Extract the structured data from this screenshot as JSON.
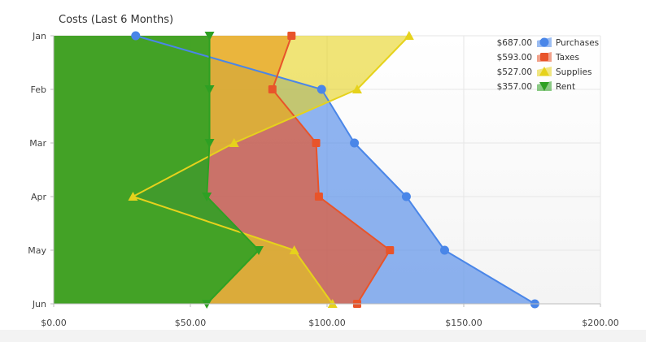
{
  "chart_data": {
    "type": "area",
    "orientation": "horizontal",
    "title": "Costs (Last 6 Months)",
    "xlabel": "",
    "ylabel": "",
    "categories": [
      "Jan",
      "Feb",
      "Mar",
      "Apr",
      "May",
      "Jun"
    ],
    "xlim": [
      0,
      200
    ],
    "x_ticks": [
      "$0.00",
      "$50.00",
      "$100.00",
      "$150.00",
      "$200.00"
    ],
    "grid": true,
    "legend_position": "top-right",
    "series": [
      {
        "name": "Purchases",
        "total": "$687.00",
        "color": "#4a86e8",
        "marker": "circle",
        "values": [
          30,
          98,
          110,
          129,
          143,
          176
        ]
      },
      {
        "name": "Taxes",
        "total": "$593.00",
        "color": "#e8542a",
        "marker": "square",
        "values": [
          87,
          80,
          96,
          97,
          123,
          111
        ]
      },
      {
        "name": "Supplies",
        "total": "$527.00",
        "color": "#e6d21c",
        "marker": "triangle-up",
        "values": [
          130,
          111,
          66,
          29,
          88,
          102
        ]
      },
      {
        "name": "Rent",
        "total": "$357.00",
        "color": "#2ea023",
        "marker": "triangle-down",
        "values": [
          57,
          57,
          57,
          56,
          75,
          56
        ]
      }
    ]
  }
}
